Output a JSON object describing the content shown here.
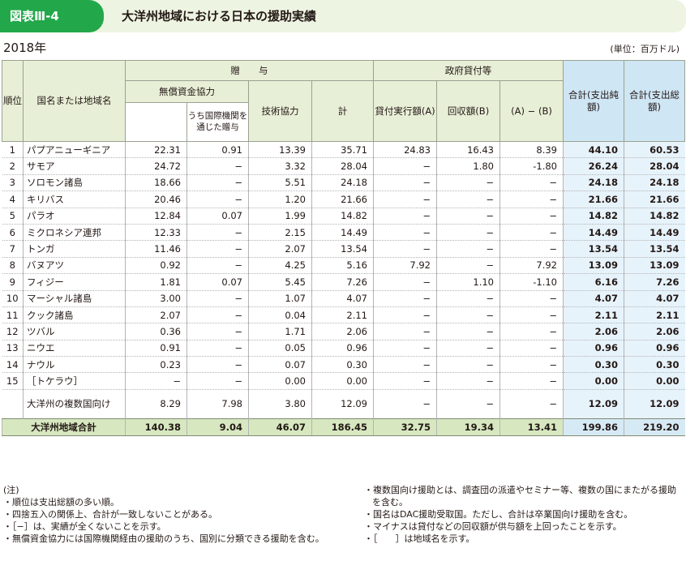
{
  "figure": {
    "label": "図表Ⅲ-4",
    "title": "大洋州地域における日本の援助実績"
  },
  "year": "2018年",
  "unit": "(単位：百万ドル)",
  "headers": {
    "rank": "順位",
    "country": "国名または地域名",
    "gift": "贈　　与",
    "grant": "無償資金協力",
    "via_intl": "うち国際機関を通じた贈与",
    "tech": "技術協力",
    "subtotal": "計",
    "loans": "政府貸付等",
    "disbursed": "貸付実行額(A)",
    "recovered": "回収額(B)",
    "a_minus_b": "(A) − (B)",
    "net_total": "合計(支出純額)",
    "gross_total": "合計(支出総額)"
  },
  "rows": [
    {
      "rank": "1",
      "name": "パプアニューギニア",
      "grant": "22.31",
      "via_intl": "0.91",
      "tech": "13.39",
      "subtotal": "35.71",
      "disbursed": "24.83",
      "recovered": "16.43",
      "a_minus_b": "8.39",
      "net": "44.10",
      "gross": "60.53"
    },
    {
      "rank": "2",
      "name": "サモア",
      "grant": "24.72",
      "via_intl": "−",
      "tech": "3.32",
      "subtotal": "28.04",
      "disbursed": "−",
      "recovered": "1.80",
      "a_minus_b": "-1.80",
      "net": "26.24",
      "gross": "28.04"
    },
    {
      "rank": "3",
      "name": "ソロモン諸島",
      "grant": "18.66",
      "via_intl": "−",
      "tech": "5.51",
      "subtotal": "24.18",
      "disbursed": "−",
      "recovered": "−",
      "a_minus_b": "−",
      "net": "24.18",
      "gross": "24.18"
    },
    {
      "rank": "4",
      "name": "キリバス",
      "grant": "20.46",
      "via_intl": "−",
      "tech": "1.20",
      "subtotal": "21.66",
      "disbursed": "−",
      "recovered": "−",
      "a_minus_b": "−",
      "net": "21.66",
      "gross": "21.66"
    },
    {
      "rank": "5",
      "name": "パラオ",
      "grant": "12.84",
      "via_intl": "0.07",
      "tech": "1.99",
      "subtotal": "14.82",
      "disbursed": "−",
      "recovered": "−",
      "a_minus_b": "−",
      "net": "14.82",
      "gross": "14.82"
    },
    {
      "rank": "6",
      "name": "ミクロネシア連邦",
      "grant": "12.33",
      "via_intl": "−",
      "tech": "2.15",
      "subtotal": "14.49",
      "disbursed": "−",
      "recovered": "−",
      "a_minus_b": "−",
      "net": "14.49",
      "gross": "14.49"
    },
    {
      "rank": "7",
      "name": "トンガ",
      "grant": "11.46",
      "via_intl": "−",
      "tech": "2.07",
      "subtotal": "13.54",
      "disbursed": "−",
      "recovered": "−",
      "a_minus_b": "−",
      "net": "13.54",
      "gross": "13.54"
    },
    {
      "rank": "8",
      "name": "バヌアツ",
      "grant": "0.92",
      "via_intl": "−",
      "tech": "4.25",
      "subtotal": "5.16",
      "disbursed": "7.92",
      "recovered": "−",
      "a_minus_b": "7.92",
      "net": "13.09",
      "gross": "13.09"
    },
    {
      "rank": "9",
      "name": "フィジー",
      "grant": "1.81",
      "via_intl": "0.07",
      "tech": "5.45",
      "subtotal": "7.26",
      "disbursed": "−",
      "recovered": "1.10",
      "a_minus_b": "-1.10",
      "net": "6.16",
      "gross": "7.26"
    },
    {
      "rank": "10",
      "name": "マーシャル諸島",
      "grant": "3.00",
      "via_intl": "−",
      "tech": "1.07",
      "subtotal": "4.07",
      "disbursed": "−",
      "recovered": "−",
      "a_minus_b": "−",
      "net": "4.07",
      "gross": "4.07"
    },
    {
      "rank": "11",
      "name": "クック諸島",
      "grant": "2.07",
      "via_intl": "−",
      "tech": "0.04",
      "subtotal": "2.11",
      "disbursed": "−",
      "recovered": "−",
      "a_minus_b": "−",
      "net": "2.11",
      "gross": "2.11"
    },
    {
      "rank": "12",
      "name": "ツバル",
      "grant": "0.36",
      "via_intl": "−",
      "tech": "1.71",
      "subtotal": "2.06",
      "disbursed": "−",
      "recovered": "−",
      "a_minus_b": "−",
      "net": "2.06",
      "gross": "2.06"
    },
    {
      "rank": "13",
      "name": "ニウエ",
      "grant": "0.91",
      "via_intl": "−",
      "tech": "0.05",
      "subtotal": "0.96",
      "disbursed": "−",
      "recovered": "−",
      "a_minus_b": "−",
      "net": "0.96",
      "gross": "0.96"
    },
    {
      "rank": "14",
      "name": "ナウル",
      "grant": "0.23",
      "via_intl": "−",
      "tech": "0.07",
      "subtotal": "0.30",
      "disbursed": "−",
      "recovered": "−",
      "a_minus_b": "−",
      "net": "0.30",
      "gross": "0.30"
    },
    {
      "rank": "15",
      "name": "［トケラウ］",
      "grant": "−",
      "via_intl": "−",
      "tech": "0.00",
      "subtotal": "0.00",
      "disbursed": "−",
      "recovered": "−",
      "a_minus_b": "−",
      "net": "0.00",
      "gross": "0.00"
    }
  ],
  "multi_row": {
    "rank": "",
    "name": "大洋州の複数国向け",
    "grant": "8.29",
    "via_intl": "7.98",
    "tech": "3.80",
    "subtotal": "12.09",
    "disbursed": "−",
    "recovered": "−",
    "a_minus_b": "−",
    "net": "12.09",
    "gross": "12.09"
  },
  "total_row": {
    "label": "大洋州地域合計",
    "grant": "140.38",
    "via_intl": "9.04",
    "tech": "46.07",
    "subtotal": "186.45",
    "disbursed": "32.75",
    "recovered": "19.34",
    "a_minus_b": "13.41",
    "net": "199.86",
    "gross": "219.20"
  },
  "notes_left": [
    "(注)",
    "・順位は支出総額の多い順。",
    "・四捨五入の関係上、合計が一致しないことがある。",
    "・［−］は、実績が全くないことを示す。",
    "・無償資金協力には国際機関経由の援助のうち、国別に分類できる援助を含む。"
  ],
  "notes_right": [
    "・複数国向け援助とは、調査団の派遣やセミナー等、複数の国にまたがる援助を含む。",
    "・国名はDAC援助受取国。ただし、合計は卒業国向け援助を含む。",
    "・マイナスは貸付などの回収額が供与額を上回ったことを示す。",
    "・［　　］は地域名を示す。"
  ],
  "colors": {
    "figure_label": "#22a84a",
    "title_band": "#eef4e2",
    "header_green": "#e8efd7",
    "header_blue": "#cfe6f5",
    "total_row": "#d7e8c1"
  }
}
